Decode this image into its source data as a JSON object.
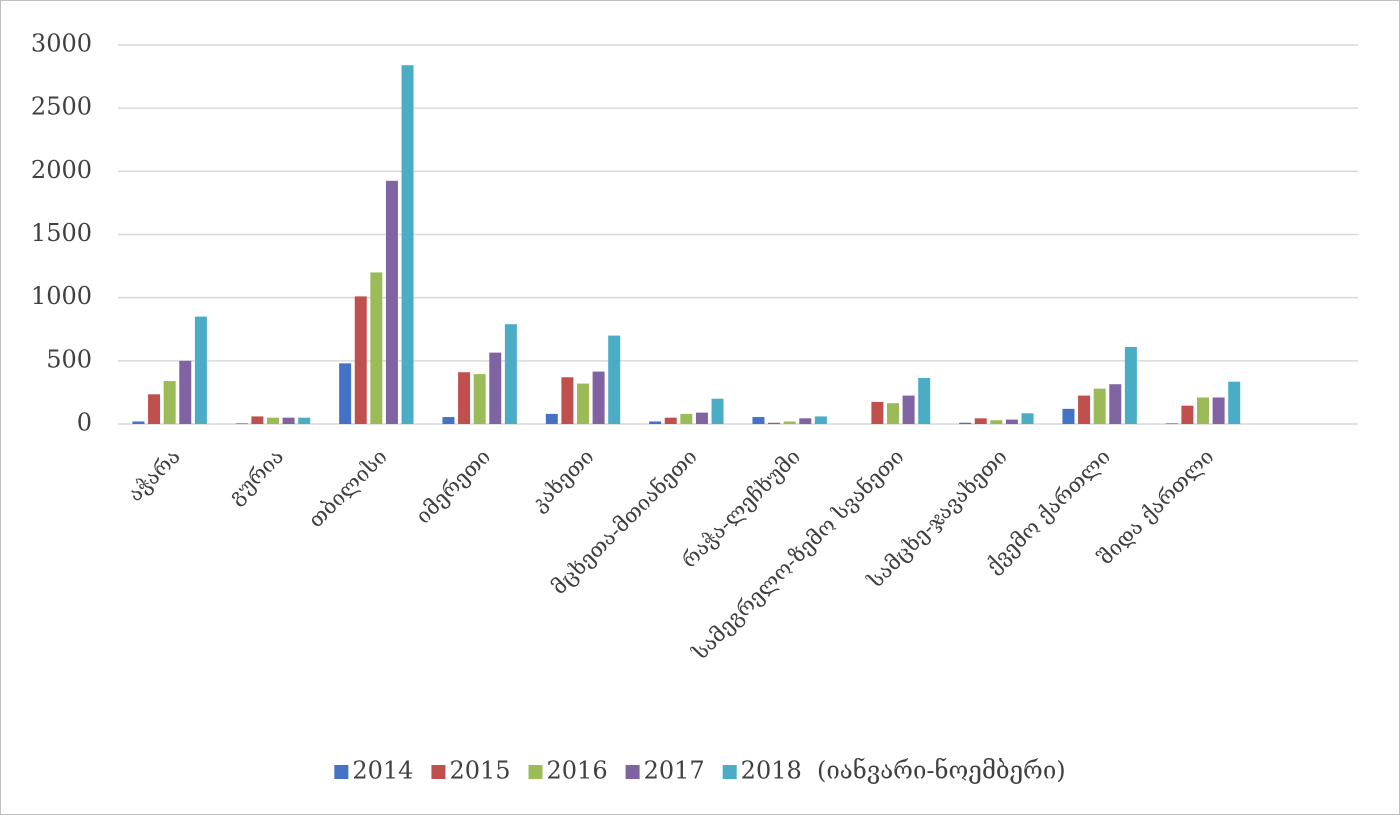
{
  "chart_data": {
    "type": "bar",
    "categories": [
      "აჭარა",
      "გურია",
      "თბილისი",
      "იმერეთი",
      "კახეთი",
      "მცხეთა-მთიანეთი",
      "რაჭა-ლეჩხუმი",
      "სამეგრელო-ზემო სვანეთი",
      "სამცხე-ჯავახეთი",
      "ქვემო ქართლი",
      "შიდა ქართლი",
      null
    ],
    "series": [
      {
        "name": "2014",
        "color": "#4472c4",
        "values": [
          20,
          5,
          480,
          55,
          80,
          20,
          55,
          0,
          10,
          120,
          5,
          null
        ]
      },
      {
        "name": "2015",
        "color": "#c0504d",
        "values": [
          235,
          60,
          1010,
          410,
          370,
          50,
          10,
          175,
          45,
          225,
          145,
          null
        ]
      },
      {
        "name": "2016",
        "color": "#9bbb59",
        "values": [
          340,
          50,
          1200,
          395,
          320,
          80,
          20,
          165,
          30,
          280,
          210,
          null
        ]
      },
      {
        "name": "2017",
        "color": "#8064a2",
        "values": [
          500,
          50,
          1925,
          565,
          415,
          90,
          45,
          225,
          35,
          315,
          210,
          null
        ]
      },
      {
        "name": "2018  (იანვარი-ნოემბერი)",
        "color": "#4bacc6",
        "values": [
          850,
          50,
          2840,
          790,
          700,
          200,
          60,
          365,
          85,
          610,
          335,
          null
        ]
      }
    ],
    "ylim": [
      0,
      3000
    ],
    "yticks": [
      0,
      500,
      1000,
      1500,
      2000,
      2500,
      3000
    ],
    "grid": true,
    "legend": "bottom"
  }
}
